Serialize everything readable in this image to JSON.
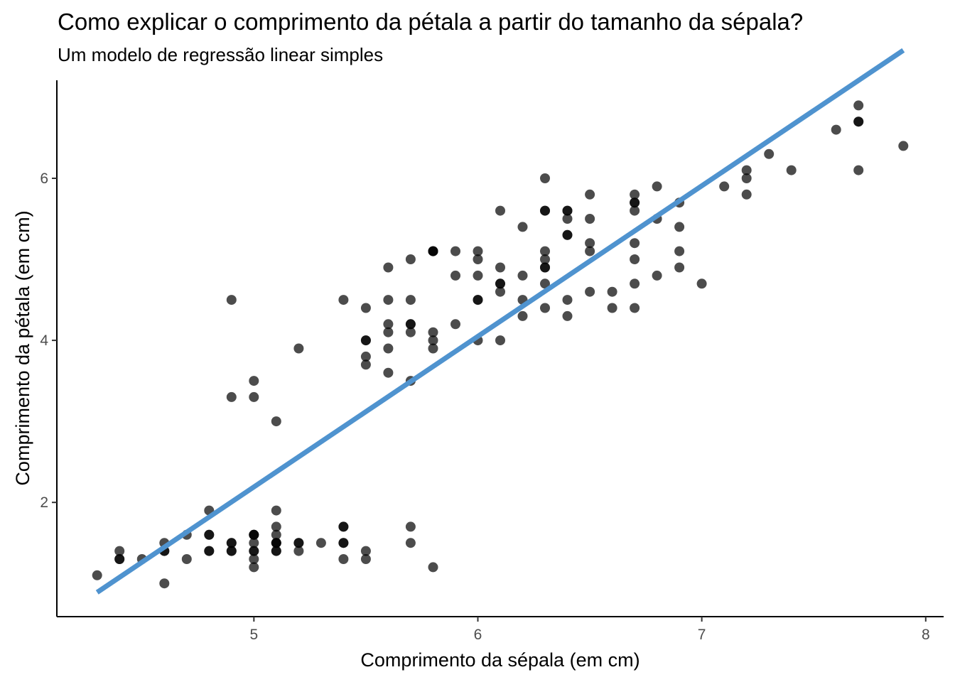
{
  "chart_data": {
    "type": "scatter",
    "title": "Como explicar o comprimento da pétala a partir do tamanho da sépala?",
    "subtitle": "Um modelo de regressão linear simples",
    "xlabel": "Comprimento da sépala (em cm)",
    "ylabel": "Comprimento da pétala (em cm)",
    "xlim": [
      4.12,
      8.08
    ],
    "ylim": [
      0.59,
      7.21
    ],
    "x_ticks": [
      "5",
      "6",
      "7",
      "8"
    ],
    "y_ticks": [
      "2",
      "4",
      "6"
    ],
    "grid": false,
    "point_color": "#000000",
    "point_opacity": 0.7,
    "line_color": "#4f93cf",
    "regression_line": {
      "x": [
        4.3,
        7.9
      ],
      "y": [
        0.89,
        7.58
      ]
    },
    "points": [
      [
        5.1,
        1.4
      ],
      [
        4.9,
        1.4
      ],
      [
        4.7,
        1.3
      ],
      [
        4.6,
        1.5
      ],
      [
        5.0,
        1.4
      ],
      [
        5.4,
        1.7
      ],
      [
        4.6,
        1.4
      ],
      [
        5.0,
        1.5
      ],
      [
        4.4,
        1.4
      ],
      [
        4.9,
        1.5
      ],
      [
        5.4,
        1.5
      ],
      [
        4.8,
        1.6
      ],
      [
        4.8,
        1.4
      ],
      [
        4.3,
        1.1
      ],
      [
        5.8,
        1.2
      ],
      [
        5.7,
        1.5
      ],
      [
        5.4,
        1.3
      ],
      [
        5.1,
        1.4
      ],
      [
        5.7,
        1.7
      ],
      [
        5.1,
        1.5
      ],
      [
        5.4,
        1.7
      ],
      [
        5.1,
        1.5
      ],
      [
        4.6,
        1.0
      ],
      [
        5.1,
        1.7
      ],
      [
        4.8,
        1.9
      ],
      [
        5.0,
        1.6
      ],
      [
        5.0,
        1.6
      ],
      [
        5.2,
        1.5
      ],
      [
        5.2,
        1.4
      ],
      [
        4.7,
        1.6
      ],
      [
        4.8,
        1.6
      ],
      [
        5.4,
        1.5
      ],
      [
        5.2,
        1.5
      ],
      [
        5.5,
        1.4
      ],
      [
        4.9,
        1.5
      ],
      [
        5.0,
        1.2
      ],
      [
        5.5,
        1.3
      ],
      [
        4.9,
        1.4
      ],
      [
        4.4,
        1.3
      ],
      [
        5.1,
        1.5
      ],
      [
        5.0,
        1.3
      ],
      [
        4.5,
        1.3
      ],
      [
        4.4,
        1.3
      ],
      [
        5.0,
        1.6
      ],
      [
        5.1,
        1.9
      ],
      [
        4.8,
        1.4
      ],
      [
        5.1,
        1.6
      ],
      [
        4.6,
        1.4
      ],
      [
        5.3,
        1.5
      ],
      [
        5.0,
        1.4
      ],
      [
        7.0,
        4.7
      ],
      [
        6.4,
        4.5
      ],
      [
        6.9,
        4.9
      ],
      [
        5.5,
        4.0
      ],
      [
        6.5,
        4.6
      ],
      [
        5.7,
        4.5
      ],
      [
        6.3,
        4.7
      ],
      [
        4.9,
        3.3
      ],
      [
        6.6,
        4.6
      ],
      [
        5.2,
        3.9
      ],
      [
        5.0,
        3.5
      ],
      [
        5.9,
        4.2
      ],
      [
        6.0,
        4.0
      ],
      [
        6.1,
        4.7
      ],
      [
        5.6,
        3.6
      ],
      [
        6.7,
        4.4
      ],
      [
        5.6,
        4.5
      ],
      [
        5.8,
        4.1
      ],
      [
        6.2,
        4.5
      ],
      [
        5.6,
        3.9
      ],
      [
        5.9,
        4.8
      ],
      [
        6.1,
        4.0
      ],
      [
        6.3,
        4.9
      ],
      [
        6.1,
        4.7
      ],
      [
        6.4,
        4.3
      ],
      [
        6.6,
        4.4
      ],
      [
        6.8,
        4.8
      ],
      [
        6.7,
        5.0
      ],
      [
        6.0,
        4.5
      ],
      [
        5.7,
        3.5
      ],
      [
        5.5,
        3.8
      ],
      [
        5.5,
        3.7
      ],
      [
        5.8,
        3.9
      ],
      [
        6.0,
        5.1
      ],
      [
        5.4,
        4.5
      ],
      [
        6.0,
        4.5
      ],
      [
        6.7,
        4.7
      ],
      [
        6.3,
        4.4
      ],
      [
        5.6,
        4.1
      ],
      [
        5.5,
        4.0
      ],
      [
        5.5,
        4.4
      ],
      [
        6.1,
        4.6
      ],
      [
        5.8,
        4.0
      ],
      [
        5.0,
        3.3
      ],
      [
        5.6,
        4.2
      ],
      [
        5.7,
        4.2
      ],
      [
        5.7,
        4.2
      ],
      [
        6.2,
        4.3
      ],
      [
        5.1,
        3.0
      ],
      [
        5.7,
        4.1
      ],
      [
        6.3,
        6.0
      ],
      [
        5.8,
        5.1
      ],
      [
        7.1,
        5.9
      ],
      [
        6.3,
        5.6
      ],
      [
        6.5,
        5.8
      ],
      [
        7.6,
        6.6
      ],
      [
        4.9,
        4.5
      ],
      [
        7.3,
        6.3
      ],
      [
        6.7,
        5.8
      ],
      [
        7.2,
        6.1
      ],
      [
        6.5,
        5.1
      ],
      [
        6.4,
        5.3
      ],
      [
        6.8,
        5.5
      ],
      [
        5.7,
        5.0
      ],
      [
        5.8,
        5.1
      ],
      [
        6.4,
        5.3
      ],
      [
        6.5,
        5.5
      ],
      [
        7.7,
        6.7
      ],
      [
        7.7,
        6.9
      ],
      [
        6.0,
        5.0
      ],
      [
        6.9,
        5.7
      ],
      [
        5.6,
        4.9
      ],
      [
        7.7,
        6.7
      ],
      [
        6.3,
        4.9
      ],
      [
        6.7,
        5.7
      ],
      [
        7.2,
        6.0
      ],
      [
        6.2,
        4.8
      ],
      [
        6.1,
        4.9
      ],
      [
        6.4,
        5.6
      ],
      [
        7.2,
        5.8
      ],
      [
        7.4,
        6.1
      ],
      [
        7.9,
        6.4
      ],
      [
        6.4,
        5.6
      ],
      [
        6.3,
        5.1
      ],
      [
        6.1,
        5.6
      ],
      [
        7.7,
        6.1
      ],
      [
        6.3,
        5.6
      ],
      [
        6.4,
        5.5
      ],
      [
        6.0,
        4.8
      ],
      [
        6.9,
        5.4
      ],
      [
        6.7,
        5.6
      ],
      [
        6.9,
        5.1
      ],
      [
        5.8,
        5.1
      ],
      [
        6.8,
        5.9
      ],
      [
        6.7,
        5.7
      ],
      [
        6.7,
        5.2
      ],
      [
        6.3,
        5.0
      ],
      [
        6.5,
        5.2
      ],
      [
        6.2,
        5.4
      ],
      [
        5.9,
        5.1
      ]
    ]
  }
}
